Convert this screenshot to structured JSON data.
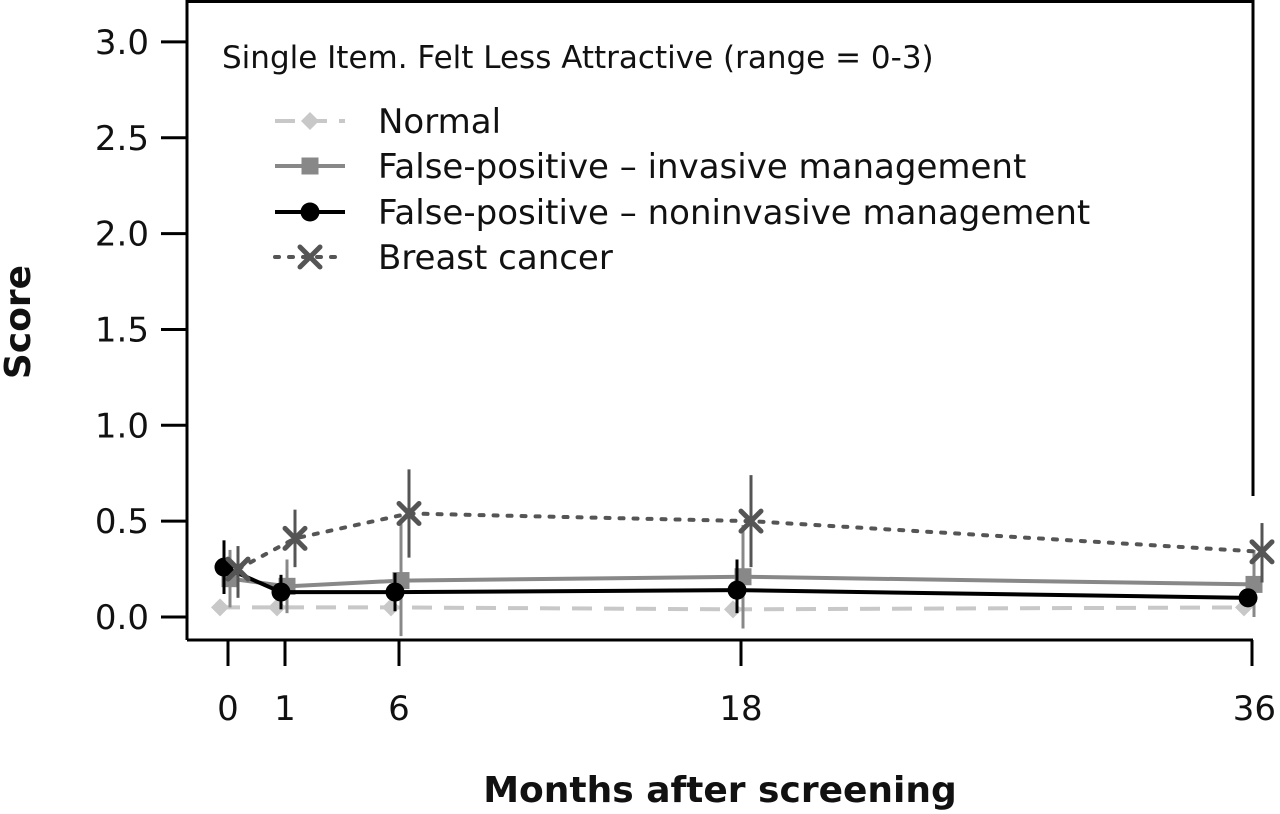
{
  "chart_data": {
    "type": "line",
    "title": "Single Item. Felt Less Attractive (range = 0-3)",
    "xlabel": "Months after screening",
    "ylabel": "Score",
    "x": [
      0,
      1,
      6,
      18,
      36
    ],
    "x_tick_labels": [
      "0",
      "1",
      "6",
      "18",
      "36"
    ],
    "y_ticks": [
      0.0,
      0.5,
      1.0,
      1.5,
      2.0,
      2.5,
      3.0
    ],
    "y_tick_labels": [
      "0.0",
      "0.5",
      "1.0",
      "1.5",
      "2.0",
      "2.5",
      "3.0"
    ],
    "ylim": [
      0,
      3
    ],
    "grid": false,
    "legend_placement": "top-left",
    "series": [
      {
        "name": "Normal",
        "color": "#c8c8c8",
        "line_style": "dashed",
        "marker": "diamond",
        "values": [
          0.05,
          0.05,
          0.05,
          0.04,
          0.05
        ],
        "error_low": [
          0.04,
          0.04,
          0.04,
          0.03,
          0.04
        ],
        "error_high": [
          0.06,
          0.06,
          0.06,
          0.05,
          0.06
        ]
      },
      {
        "name": "False-positive – invasive management",
        "color": "#888888",
        "line_style": "solid",
        "marker": "square",
        "values": [
          0.2,
          0.16,
          0.19,
          0.21,
          0.17
        ],
        "error_low": [
          0.05,
          0.02,
          -0.1,
          -0.06,
          0.0
        ],
        "error_high": [
          0.35,
          0.3,
          0.5,
          0.48,
          0.35
        ]
      },
      {
        "name": "False-positive – noninvasive management",
        "color": "#000000",
        "line_style": "solid",
        "marker": "circle",
        "values": [
          0.26,
          0.13,
          0.13,
          0.14,
          0.1
        ],
        "error_low": [
          0.12,
          0.04,
          0.03,
          0.02,
          0.06
        ],
        "error_high": [
          0.4,
          0.22,
          0.23,
          0.3,
          0.14
        ]
      },
      {
        "name": "Breast cancer",
        "color": "#555555",
        "line_style": "dotted",
        "marker": "x",
        "values": [
          0.25,
          0.41,
          0.54,
          0.5,
          0.34
        ],
        "error_low": [
          0.1,
          0.26,
          0.31,
          0.26,
          0.18
        ],
        "error_high": [
          0.37,
          0.56,
          0.77,
          0.74,
          0.49
        ]
      }
    ]
  }
}
